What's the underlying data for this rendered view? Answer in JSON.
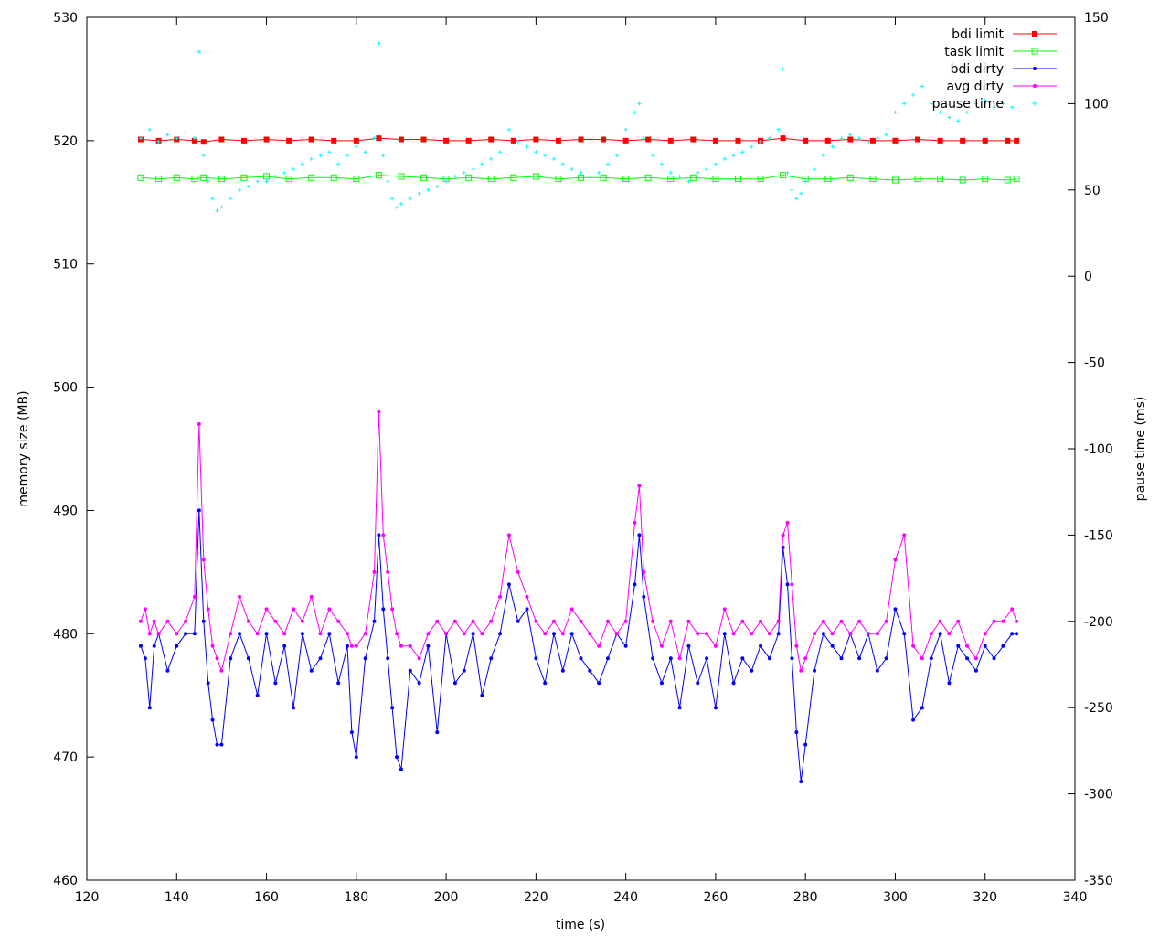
{
  "chart_data": {
    "type": "line",
    "xlabel": "time (s)",
    "ylabel": "memory size (MB)",
    "y2label": "pause time (ms)",
    "xlim": [
      120,
      340
    ],
    "ylim": [
      460,
      530
    ],
    "y2lim": [
      -350,
      150
    ],
    "xticks": [
      "120",
      "140",
      "160",
      "180",
      "200",
      "220",
      "240",
      "260",
      "280",
      "300",
      "320",
      "340"
    ],
    "yticks": [
      "460",
      "470",
      "480",
      "490",
      "500",
      "510",
      "520",
      "530"
    ],
    "y2ticks": [
      "-350",
      "-300",
      "-250",
      "-200",
      "-150",
      "-100",
      "-50",
      "0",
      "50",
      "100",
      "150"
    ],
    "legend_position": "top-right",
    "series": [
      {
        "name": "bdi limit",
        "color": "#ff0000",
        "marker": "square-filled",
        "axis": "y1",
        "x": [
          132,
          136,
          140,
          144,
          146,
          150,
          155,
          160,
          165,
          170,
          175,
          180,
          185,
          190,
          195,
          200,
          205,
          210,
          215,
          220,
          225,
          230,
          235,
          240,
          245,
          250,
          255,
          260,
          265,
          270,
          275,
          280,
          285,
          290,
          295,
          300,
          305,
          310,
          315,
          320,
          325,
          327
        ],
        "y": [
          520.1,
          520.0,
          520.1,
          520.0,
          519.9,
          520.1,
          520.0,
          520.1,
          520.0,
          520.1,
          520.0,
          520.0,
          520.2,
          520.1,
          520.1,
          520.0,
          520.0,
          520.1,
          520.0,
          520.1,
          520.0,
          520.1,
          520.1,
          520.0,
          520.1,
          520.0,
          520.1,
          520.0,
          520.0,
          520.0,
          520.2,
          520.0,
          520.0,
          520.1,
          520.0,
          520.0,
          520.1,
          520.0,
          520.0,
          520.0,
          520.0,
          520.0
        ]
      },
      {
        "name": "task limit",
        "color": "#00ff00",
        "marker": "square-open",
        "axis": "y1",
        "x": [
          132,
          136,
          140,
          144,
          146,
          150,
          155,
          160,
          165,
          170,
          175,
          180,
          185,
          190,
          195,
          200,
          205,
          210,
          215,
          220,
          225,
          230,
          235,
          240,
          245,
          250,
          255,
          260,
          265,
          270,
          275,
          280,
          285,
          290,
          295,
          300,
          305,
          310,
          315,
          320,
          325,
          327
        ],
        "y": [
          517.0,
          516.9,
          517.0,
          516.9,
          517.0,
          516.9,
          517.0,
          517.1,
          516.9,
          517.0,
          517.0,
          516.9,
          517.2,
          517.1,
          517.0,
          516.9,
          517.0,
          516.9,
          517.0,
          517.1,
          516.9,
          517.0,
          517.0,
          516.9,
          517.0,
          516.9,
          517.0,
          516.9,
          516.9,
          516.9,
          517.2,
          516.9,
          516.9,
          517.0,
          516.9,
          516.8,
          516.9,
          516.9,
          516.8,
          516.9,
          516.8,
          516.9
        ]
      },
      {
        "name": "bdi dirty",
        "color": "#0000ff",
        "marker": "circle-filled",
        "axis": "y1",
        "x": [
          132,
          133,
          134,
          135,
          136,
          138,
          140,
          142,
          144,
          145,
          146,
          147,
          148,
          149,
          150,
          152,
          154,
          156,
          158,
          160,
          162,
          164,
          166,
          168,
          170,
          172,
          174,
          176,
          178,
          179,
          180,
          182,
          184,
          185,
          186,
          187,
          188,
          189,
          190,
          192,
          194,
          196,
          198,
          200,
          202,
          204,
          206,
          208,
          210,
          212,
          214,
          216,
          218,
          220,
          222,
          224,
          226,
          228,
          230,
          232,
          234,
          236,
          238,
          240,
          242,
          243,
          244,
          246,
          248,
          250,
          252,
          254,
          256,
          258,
          260,
          262,
          264,
          266,
          268,
          270,
          272,
          274,
          275,
          276,
          277,
          278,
          279,
          280,
          282,
          284,
          286,
          288,
          290,
          292,
          294,
          296,
          298,
          300,
          302,
          304,
          306,
          308,
          310,
          312,
          314,
          316,
          318,
          320,
          322,
          324,
          326,
          327
        ],
        "y": [
          479,
          478,
          474,
          479,
          480,
          477,
          479,
          480,
          480,
          490,
          481,
          476,
          473,
          471,
          471,
          478,
          480,
          478,
          475,
          480,
          476,
          479,
          474,
          480,
          477,
          478,
          480,
          476,
          479,
          472,
          470,
          478,
          481,
          488,
          482,
          478,
          474,
          470,
          469,
          477,
          476,
          479,
          472,
          480,
          476,
          477,
          480,
          475,
          478,
          480,
          484,
          481,
          482,
          478,
          476,
          480,
          477,
          480,
          478,
          477,
          476,
          478,
          480,
          479,
          484,
          488,
          483,
          478,
          476,
          478,
          474,
          479,
          476,
          478,
          474,
          480,
          476,
          478,
          477,
          479,
          478,
          480,
          487,
          484,
          478,
          472,
          468,
          471,
          477,
          480,
          479,
          478,
          480,
          478,
          480,
          477,
          478,
          482,
          480,
          473,
          474,
          478,
          480,
          476,
          479,
          478,
          477,
          479,
          478,
          479,
          480,
          480
        ]
      },
      {
        "name": "avg dirty",
        "color": "#ff00ff",
        "marker": "circle-filled",
        "axis": "y1",
        "x": [
          132,
          133,
          134,
          135,
          136,
          138,
          140,
          142,
          144,
          145,
          146,
          147,
          148,
          149,
          150,
          152,
          154,
          156,
          158,
          160,
          162,
          164,
          166,
          168,
          170,
          172,
          174,
          176,
          178,
          179,
          180,
          182,
          184,
          185,
          186,
          187,
          188,
          189,
          190,
          192,
          194,
          196,
          198,
          200,
          202,
          204,
          206,
          208,
          210,
          212,
          214,
          216,
          218,
          220,
          222,
          224,
          226,
          228,
          230,
          232,
          234,
          236,
          238,
          240,
          242,
          243,
          244,
          246,
          248,
          250,
          252,
          254,
          256,
          258,
          260,
          262,
          264,
          266,
          268,
          270,
          272,
          274,
          275,
          276,
          277,
          278,
          279,
          280,
          282,
          284,
          286,
          288,
          290,
          292,
          294,
          296,
          298,
          300,
          302,
          304,
          306,
          308,
          310,
          312,
          314,
          316,
          318,
          320,
          322,
          324,
          326,
          327
        ],
        "y": [
          481,
          482,
          480,
          481,
          480,
          481,
          480,
          481,
          483,
          497,
          486,
          482,
          479,
          478,
          477,
          480,
          483,
          481,
          480,
          482,
          481,
          480,
          482,
          481,
          483,
          480,
          482,
          481,
          480,
          479,
          479,
          480,
          485,
          498,
          488,
          485,
          482,
          480,
          479,
          479,
          478,
          480,
          481,
          480,
          481,
          480,
          481,
          480,
          481,
          483,
          488,
          485,
          483,
          481,
          480,
          481,
          480,
          482,
          481,
          480,
          479,
          481,
          480,
          481,
          489,
          492,
          485,
          481,
          479,
          481,
          478,
          481,
          480,
          480,
          479,
          482,
          480,
          481,
          480,
          481,
          480,
          481,
          488,
          489,
          484,
          479,
          477,
          478,
          480,
          481,
          480,
          481,
          480,
          481,
          480,
          480,
          481,
          486,
          488,
          479,
          478,
          480,
          481,
          480,
          481,
          479,
          478,
          480,
          481,
          481,
          482,
          481
        ]
      },
      {
        "name": "pause time",
        "color": "#00ffff",
        "marker": "plus",
        "axis": "y2",
        "x": [
          132,
          134,
          136,
          138,
          140,
          142,
          144,
          145,
          146,
          147,
          148,
          149,
          150,
          152,
          154,
          156,
          158,
          160,
          162,
          164,
          166,
          168,
          170,
          172,
          174,
          176,
          178,
          180,
          182,
          184,
          185,
          186,
          187,
          188,
          189,
          190,
          192,
          194,
          196,
          198,
          200,
          202,
          204,
          206,
          208,
          210,
          212,
          214,
          216,
          218,
          220,
          222,
          224,
          226,
          228,
          230,
          232,
          234,
          236,
          238,
          240,
          242,
          243,
          244,
          246,
          248,
          250,
          252,
          254,
          256,
          258,
          260,
          262,
          264,
          266,
          268,
          270,
          272,
          274,
          275,
          276,
          277,
          278,
          279,
          280,
          282,
          284,
          286,
          288,
          290,
          292,
          294,
          296,
          298,
          300,
          302,
          304,
          306,
          308,
          310,
          312,
          314,
          316,
          318,
          320,
          322,
          324,
          326
        ],
        "y": [
          80,
          85,
          78,
          82,
          80,
          83,
          80,
          130,
          70,
          55,
          45,
          38,
          40,
          45,
          50,
          52,
          55,
          55,
          58,
          60,
          62,
          65,
          68,
          70,
          72,
          65,
          70,
          75,
          72,
          80,
          135,
          70,
          55,
          45,
          40,
          42,
          45,
          48,
          50,
          52,
          55,
          58,
          60,
          62,
          65,
          68,
          72,
          85,
          78,
          75,
          72,
          70,
          68,
          65,
          62,
          60,
          58,
          60,
          65,
          70,
          85,
          95,
          100,
          80,
          70,
          65,
          60,
          58,
          55,
          60,
          62,
          65,
          68,
          70,
          72,
          75,
          78,
          80,
          85,
          120,
          60,
          50,
          45,
          48,
          55,
          62,
          70,
          75,
          80,
          82,
          80,
          78,
          80,
          82,
          95,
          100,
          105,
          110,
          100,
          95,
          92,
          90,
          95,
          100,
          102,
          98,
          100,
          98
        ]
      }
    ]
  }
}
